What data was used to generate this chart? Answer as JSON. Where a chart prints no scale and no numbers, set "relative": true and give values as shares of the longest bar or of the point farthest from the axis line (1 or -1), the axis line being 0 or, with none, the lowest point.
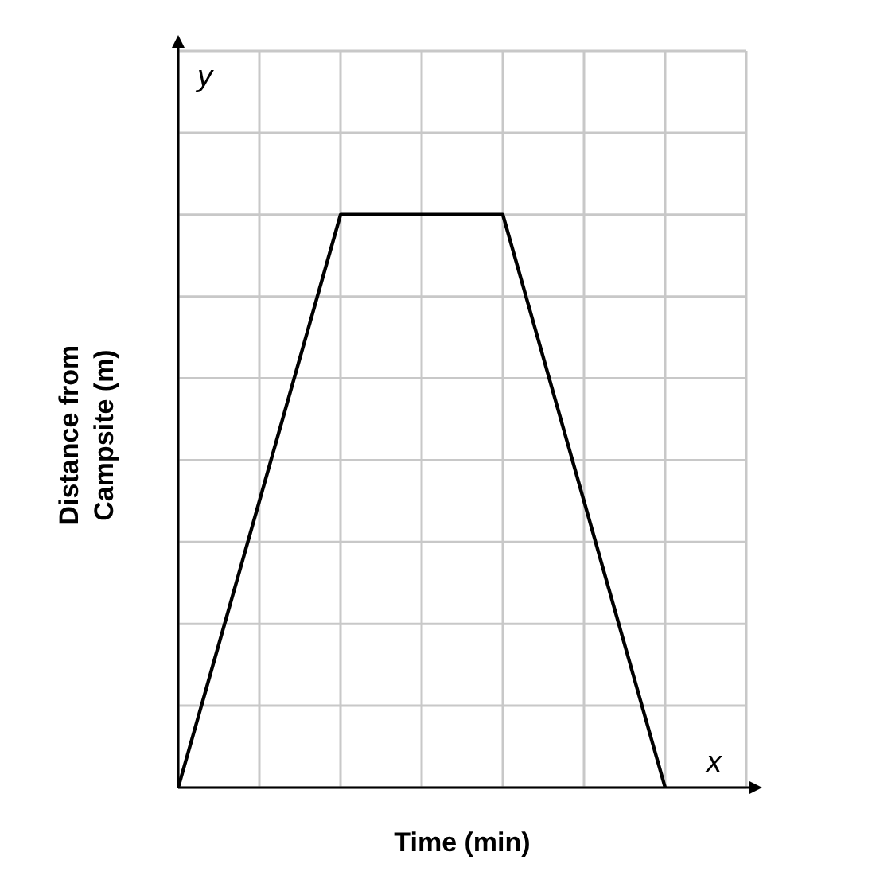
{
  "chart_data": {
    "type": "line",
    "relative": true,
    "xlabel": "Time (min)",
    "ylabel": "Distance from\nCampsite (m)",
    "annotations": [
      "x",
      "y"
    ],
    "grid": true,
    "marker": "none",
    "categories": [
      null,
      null,
      null,
      null,
      null,
      null,
      null,
      null
    ],
    "series": [
      {
        "color": "#000000",
        "values": [
          0,
          0.5,
          1,
          1,
          1,
          0.5,
          0,
          null
        ]
      }
    ]
  }
}
